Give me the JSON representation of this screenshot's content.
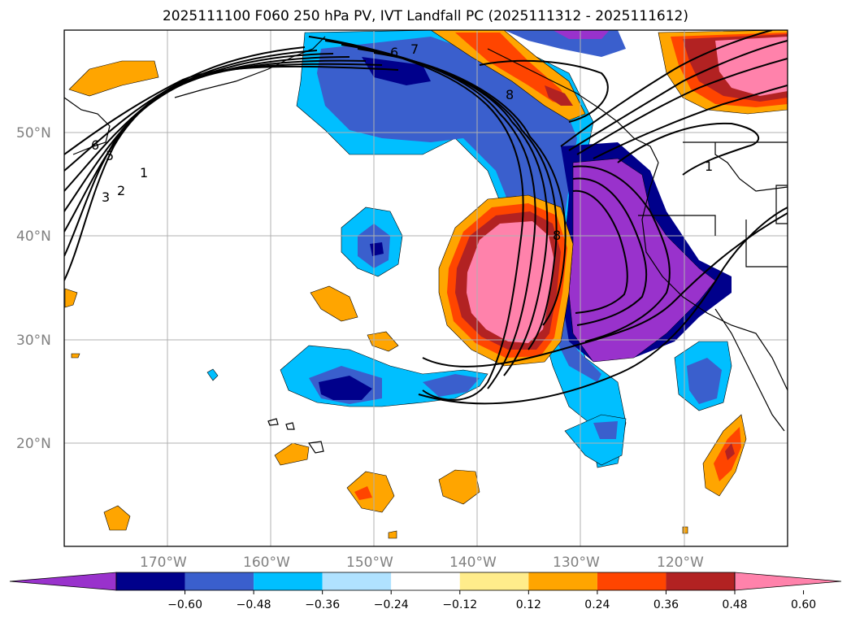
{
  "title": "2025111100 F060 250 hPa PV, IVT Landfall PC (2025111312 - 2025111612)",
  "latitude_labels": [
    "50°N",
    "40°N",
    "30°N",
    "20°N"
  ],
  "longitude_labels": [
    "170°W",
    "160°W",
    "150°W",
    "140°W",
    "130°W",
    "120°W"
  ],
  "colorbar": {
    "tick_labels": [
      "−0.60",
      "−0.48",
      "−0.36",
      "−0.24",
      "−0.12",
      "0.12",
      "0.24",
      "0.36",
      "0.48",
      "0.60"
    ],
    "colors": [
      "#9932CC",
      "#00008B",
      "#3A5FCD",
      "#00BFFF",
      "#B0E2FF",
      "#FFFFFF",
      "#FFEC8B",
      "#FFA500",
      "#FF4500",
      "#B22222",
      "#FF82AB"
    ]
  },
  "contour_labels": [
    "6",
    "7",
    "8",
    "6",
    "5",
    "3",
    "2",
    "1",
    "8",
    "1"
  ],
  "colors": {
    "purple": "#9932CC",
    "navy": "#00008B",
    "royal": "#3A5FCD",
    "sky": "#00BFFF",
    "orange": "#FFA500",
    "red": "#FF4500",
    "firebrick": "#B22222",
    "pink": "#FF82AB",
    "grid": "#b0b0b0"
  }
}
